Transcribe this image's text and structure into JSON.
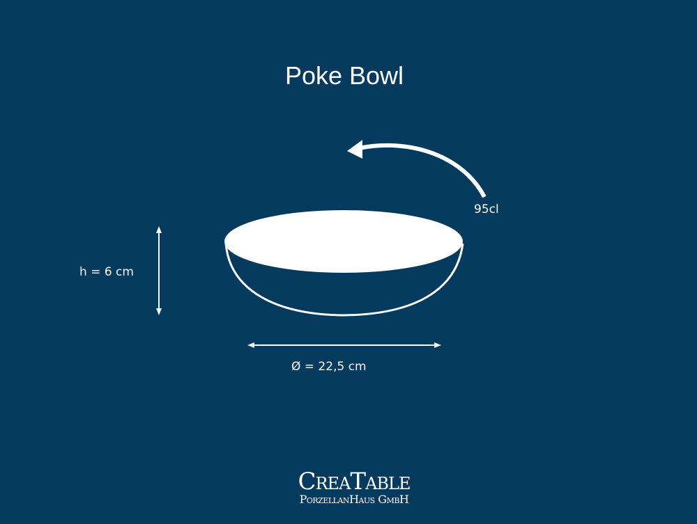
{
  "title": "Poke Bowl",
  "volume": "95cl",
  "height": "h = 6 cm",
  "diameter": "Ø = 22,5 cm",
  "logo": {
    "name": "CreaTable",
    "subtitle": "PorzellanHaus GmbH"
  },
  "colors": {
    "background": "#053a5f",
    "foreground": "#ffffff"
  }
}
